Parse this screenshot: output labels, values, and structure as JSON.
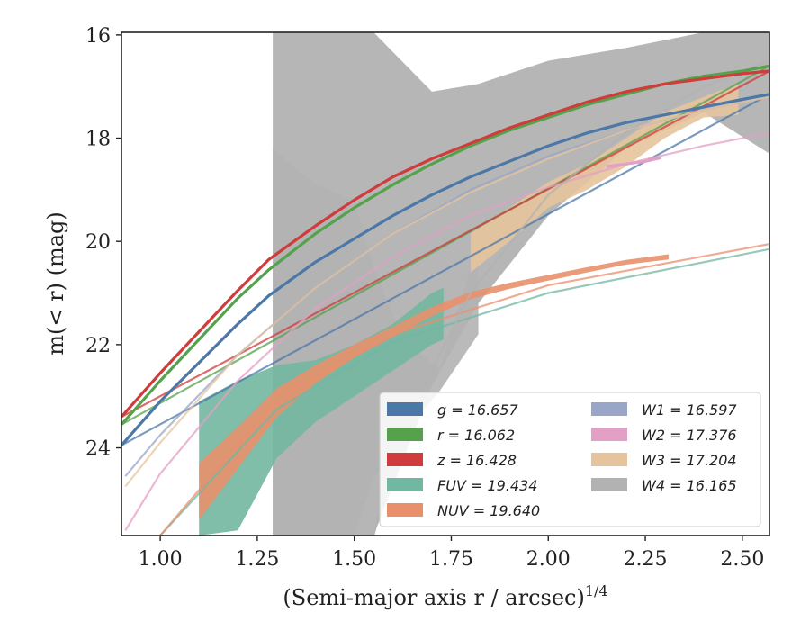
{
  "chart_data": {
    "type": "line",
    "title": "",
    "xlabel": "(Semi-major axis r / arcsec)",
    "xlabel_sup": "1/4",
    "ylabel": "m(< r) (mag)",
    "xlim": [
      0.9,
      2.57
    ],
    "ylim": [
      25.7,
      15.95
    ],
    "y_inverted": true,
    "grid": false,
    "legend_position": "lower-right",
    "xticks": [
      1.0,
      1.25,
      1.5,
      1.75,
      2.0,
      2.25,
      2.5
    ],
    "xtick_labels": [
      "1.00",
      "1.25",
      "1.50",
      "1.75",
      "2.00",
      "2.25",
      "2.50"
    ],
    "yticks": [
      16,
      18,
      20,
      22,
      24
    ],
    "ytick_labels": [
      "16",
      "18",
      "20",
      "22",
      "24"
    ],
    "series": [
      {
        "name": "g = 16.657",
        "band": "g",
        "total_mag": "16.657",
        "color": "#4c78a8",
        "x": [
          0.9,
          1.0,
          1.1,
          1.2,
          1.28,
          1.4,
          1.5,
          1.6,
          1.7,
          1.8,
          1.9,
          2.0,
          2.1,
          2.2,
          2.3,
          2.4,
          2.5,
          2.57
        ],
        "y": [
          23.95,
          23.1,
          22.35,
          21.6,
          21.05,
          20.4,
          19.95,
          19.5,
          19.1,
          18.75,
          18.45,
          18.15,
          17.9,
          17.7,
          17.55,
          17.4,
          17.25,
          17.15
        ],
        "fit_x": [
          0.9,
          2.57
        ],
        "fit_y": [
          23.95,
          17.15
        ]
      },
      {
        "name": "r = 16.062",
        "band": "r",
        "total_mag": "16.062",
        "color": "#54a24b",
        "x": [
          0.9,
          1.0,
          1.1,
          1.2,
          1.28,
          1.4,
          1.5,
          1.6,
          1.7,
          1.8,
          1.9,
          2.0,
          2.1,
          2.2,
          2.3,
          2.4,
          2.5,
          2.57
        ],
        "y": [
          23.55,
          22.7,
          21.9,
          21.1,
          20.55,
          19.85,
          19.35,
          18.9,
          18.5,
          18.15,
          17.85,
          17.6,
          17.35,
          17.15,
          16.95,
          16.8,
          16.7,
          16.6
        ],
        "fit_x": [
          0.9,
          2.57
        ],
        "fit_y": [
          23.55,
          16.6
        ]
      },
      {
        "name": "z = 16.428",
        "band": "z",
        "total_mag": "16.428",
        "color": "#d03b3b",
        "x": [
          0.9,
          1.0,
          1.1,
          1.2,
          1.28,
          1.4,
          1.5,
          1.6,
          1.7,
          1.8,
          1.9,
          2.0,
          2.1,
          2.2,
          2.3,
          2.4,
          2.5,
          2.57
        ],
        "y": [
          23.4,
          22.55,
          21.75,
          20.95,
          20.35,
          19.7,
          19.2,
          18.75,
          18.4,
          18.1,
          17.8,
          17.55,
          17.3,
          17.1,
          16.95,
          16.85,
          16.75,
          16.7
        ],
        "fit_x": [
          0.9,
          2.57
        ],
        "fit_y": [
          23.4,
          16.7
        ]
      },
      {
        "name": "FUV = 19.434",
        "band": "FUV",
        "total_mag": "19.434",
        "color": "#72b7a1",
        "x": [
          1.1,
          1.2,
          1.3,
          1.4,
          1.5,
          1.6,
          1.7,
          1.73
        ],
        "y": [
          24.2,
          23.8,
          23.2,
          22.9,
          22.5,
          22.0,
          21.5,
          21.4
        ],
        "y_lo": [
          25.7,
          25.6,
          24.2,
          23.5,
          23.0,
          22.5,
          22.0,
          21.9
        ],
        "y_hi": [
          23.1,
          22.7,
          22.4,
          22.3,
          22.0,
          21.6,
          21.0,
          20.9
        ],
        "fit_x": [
          1.0,
          1.3,
          1.6,
          2.0,
          2.57
        ],
        "fit_y": [
          25.7,
          23.25,
          21.95,
          21.0,
          20.15
        ]
      },
      {
        "name": "NUV = 19.640",
        "band": "NUV",
        "total_mag": "19.640",
        "color": "#e8906c",
        "x": [
          1.1,
          1.2,
          1.3,
          1.4,
          1.5,
          1.6,
          1.7,
          1.8,
          1.9,
          2.0,
          2.1,
          2.2,
          2.31
        ],
        "y": [
          24.9,
          24.0,
          23.1,
          22.55,
          22.1,
          21.75,
          21.35,
          21.05,
          20.85,
          20.7,
          20.55,
          20.4,
          20.3
        ],
        "y_lo": [
          25.4,
          24.4,
          23.4,
          22.75,
          22.25,
          21.85,
          21.45,
          21.12,
          20.92,
          20.76,
          20.6,
          20.45,
          20.35
        ],
        "y_hi": [
          24.3,
          23.6,
          22.85,
          22.4,
          22.0,
          21.65,
          21.27,
          20.98,
          20.8,
          20.65,
          20.5,
          20.36,
          20.25
        ],
        "fit_x": [
          1.0,
          1.3,
          1.6,
          2.0,
          2.57
        ],
        "fit_y": [
          25.7,
          23.05,
          21.8,
          20.85,
          20.05
        ]
      },
      {
        "name": "W1 = 16.597",
        "band": "W1",
        "total_mag": "16.597",
        "color": "#9aa6c8",
        "fit_x": [
          0.91,
          1.0,
          1.2,
          1.4,
          1.6,
          1.8,
          2.0,
          2.2,
          2.4,
          2.57
        ],
        "fit_y": [
          24.55,
          23.75,
          22.2,
          20.9,
          19.85,
          19.0,
          18.35,
          17.85,
          17.45,
          17.2
        ]
      },
      {
        "name": "W2 = 17.376",
        "band": "W2",
        "total_mag": "17.376",
        "color": "#e39fc6",
        "x": [
          2.15,
          2.2,
          2.25,
          2.29
        ],
        "y": [
          18.55,
          18.5,
          18.45,
          18.38
        ],
        "fit_x": [
          0.91,
          1.0,
          1.2,
          1.4,
          1.6,
          1.8,
          2.0,
          2.2,
          2.4,
          2.57
        ],
        "fit_y": [
          25.6,
          24.5,
          22.7,
          21.3,
          20.3,
          19.5,
          18.95,
          18.5,
          18.15,
          17.9
        ]
      },
      {
        "name": "W3 = 17.204",
        "band": "W3",
        "total_mag": "17.204",
        "color": "#e5c49d",
        "x": [
          1.8,
          1.9,
          2.0,
          2.1,
          2.2,
          2.3,
          2.4,
          2.49
        ],
        "y": [
          20.2,
          19.7,
          19.1,
          18.8,
          18.3,
          17.9,
          17.55,
          17.35
        ],
        "y_lo": [
          20.6,
          20.0,
          19.35,
          19.0,
          18.55,
          18.0,
          17.6,
          17.55
        ],
        "y_hi": [
          19.85,
          19.35,
          18.85,
          18.5,
          18.0,
          17.5,
          17.2,
          16.95
        ],
        "fit_x": [
          0.91,
          1.0,
          1.2,
          1.4,
          1.6,
          1.8,
          2.0,
          2.2,
          2.4,
          2.57
        ],
        "fit_y": [
          24.75,
          23.9,
          22.2,
          20.9,
          19.85,
          19.05,
          18.4,
          17.85,
          17.45,
          17.2
        ]
      },
      {
        "name": "W4 = 16.165",
        "band": "W4",
        "total_mag": "16.165",
        "color": "#b2b2b2",
        "band_x": [
          1.29,
          1.55,
          1.7,
          1.82,
          2.0,
          2.2,
          2.4,
          2.57
        ],
        "band_hi": [
          15.95,
          15.95,
          17.1,
          16.95,
          16.5,
          16.25,
          15.95,
          15.95
        ],
        "band_lo": [
          25.7,
          25.7,
          22.8,
          21.2,
          19.5,
          18.2,
          17.5,
          18.3
        ],
        "band2_x": [
          1.29,
          1.4,
          1.5,
          1.55,
          1.62,
          1.72,
          1.82
        ],
        "band2_hi": [
          18.2,
          18.9,
          19.2,
          20.5,
          21.8,
          22.5,
          20.0
        ],
        "band2_lo": [
          25.7,
          25.7,
          25.7,
          24.6,
          23.8,
          22.9,
          21.8
        ],
        "fit_x": [
          1.55,
          1.6,
          1.7,
          1.8,
          2.0,
          2.2,
          2.4,
          2.57
        ],
        "fit_y": [
          25.7,
          24.2,
          22.5,
          21.0,
          19.1,
          17.9,
          17.0,
          16.5
        ]
      }
    ]
  }
}
